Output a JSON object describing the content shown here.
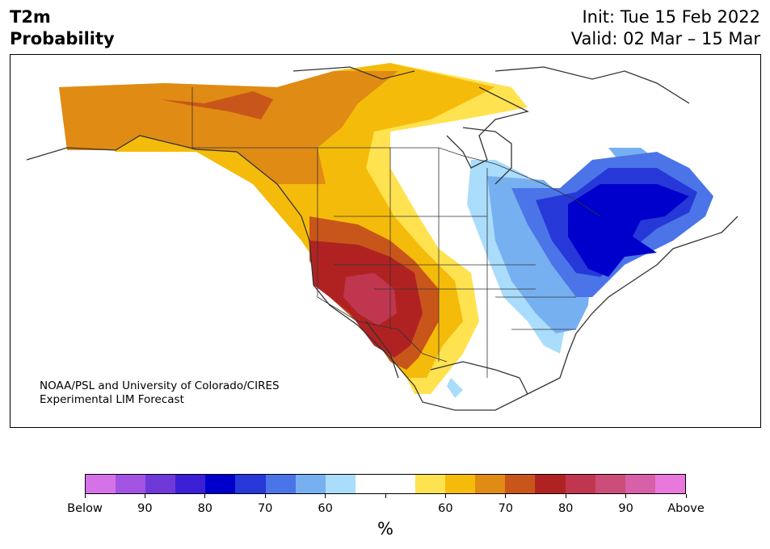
{
  "title": {
    "left_line1": "T2m",
    "left_line2": "Probability",
    "right_line1": "Init: Tue 15 Feb 2022",
    "right_line2": "Valid: 02 Mar – 15 Mar"
  },
  "credit": {
    "line1": "NOAA/PSL and University of Colorado/CIRES",
    "line2": "Experimental LIM Forecast"
  },
  "colorbar": {
    "colors": [
      "#d672e8",
      "#a253e2",
      "#6f39d9",
      "#3a1fd6",
      "#0000cc",
      "#2638d8",
      "#4a74e8",
      "#77b0f0",
      "#aadcfb",
      "#ffffff",
      "#ffffff",
      "#ffe24f",
      "#f5bb0a",
      "#e08b14",
      "#c8561a",
      "#b02222",
      "#c0364e",
      "#cc4c7a",
      "#d860a8",
      "#e878dc"
    ],
    "tick_labels": [
      "Below",
      "90",
      "80",
      "70",
      "60",
      "",
      "60",
      "70",
      "80",
      "90",
      "Above"
    ],
    "unit": "%"
  },
  "map": {
    "legend_colors": {
      "above_80": "#b02222",
      "above_85": "#c0364e",
      "above_75": "#c8561a",
      "above_70": "#e08b14",
      "above_65": "#f5bb0a",
      "above_60": "#ffe24f",
      "below_60": "#aadcfb",
      "below_65": "#77b0f0",
      "below_70": "#4a74e8",
      "below_75": "#2638d8",
      "below_80": "#0000cc"
    }
  }
}
